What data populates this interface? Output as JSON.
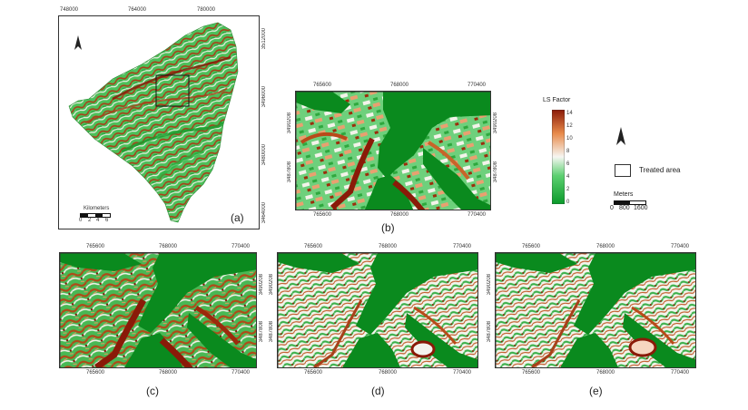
{
  "panel_a": {
    "label": "(a)",
    "top_ticks": [
      "748000",
      "764000",
      "780000"
    ],
    "right_ticks": [
      "3512000",
      "3496000",
      "3480000",
      "3464000"
    ],
    "scalebar": {
      "title": "Kilometers",
      "ticks": [
        "0",
        "2",
        "4",
        "6"
      ]
    }
  },
  "panel_b": {
    "label": "(b)",
    "top_ticks": [
      "765600",
      "768000",
      "770400"
    ],
    "bottom_ticks": [
      "765600",
      "768000",
      "770400"
    ],
    "left_ticks": [
      "3490208",
      "3487808"
    ],
    "right_ticks": [
      "3490208",
      "3487808"
    ]
  },
  "legend": {
    "title": "LS Factor",
    "ticks": [
      "14",
      "12",
      "10",
      "8",
      "6",
      "4",
      "2",
      "0"
    ],
    "treated_area_label": "Treated area",
    "meters_title": "Meters",
    "meters_ticks": [
      "0",
      "800",
      "1600"
    ]
  },
  "panel_c": {
    "label": "(c)",
    "top_ticks": [
      "765600",
      "768000",
      "770400"
    ],
    "bottom_ticks": [
      "765600",
      "768000",
      "770400"
    ],
    "left_ticks": [
      "3490208",
      "3487808"
    ]
  },
  "panel_d": {
    "label": "(d)",
    "top_ticks": [
      "765600",
      "768000",
      "770400"
    ],
    "bottom_ticks": [
      "765600",
      "768000",
      "770400"
    ],
    "left_ticks": [
      "3490208",
      "3487808"
    ]
  },
  "panel_e": {
    "label": "(e)",
    "top_ticks": [
      "765600",
      "768000",
      "770400"
    ],
    "bottom_ticks": [
      "765600",
      "768000",
      "770400"
    ],
    "left_ticks": [
      "3490208",
      "3487808"
    ]
  },
  "colors": {
    "dark_green": "#0a8a1e",
    "green": "#3cc24a",
    "light": "#f4f4ee",
    "orange": "#e6793a",
    "dark_red": "#8a1a08"
  }
}
